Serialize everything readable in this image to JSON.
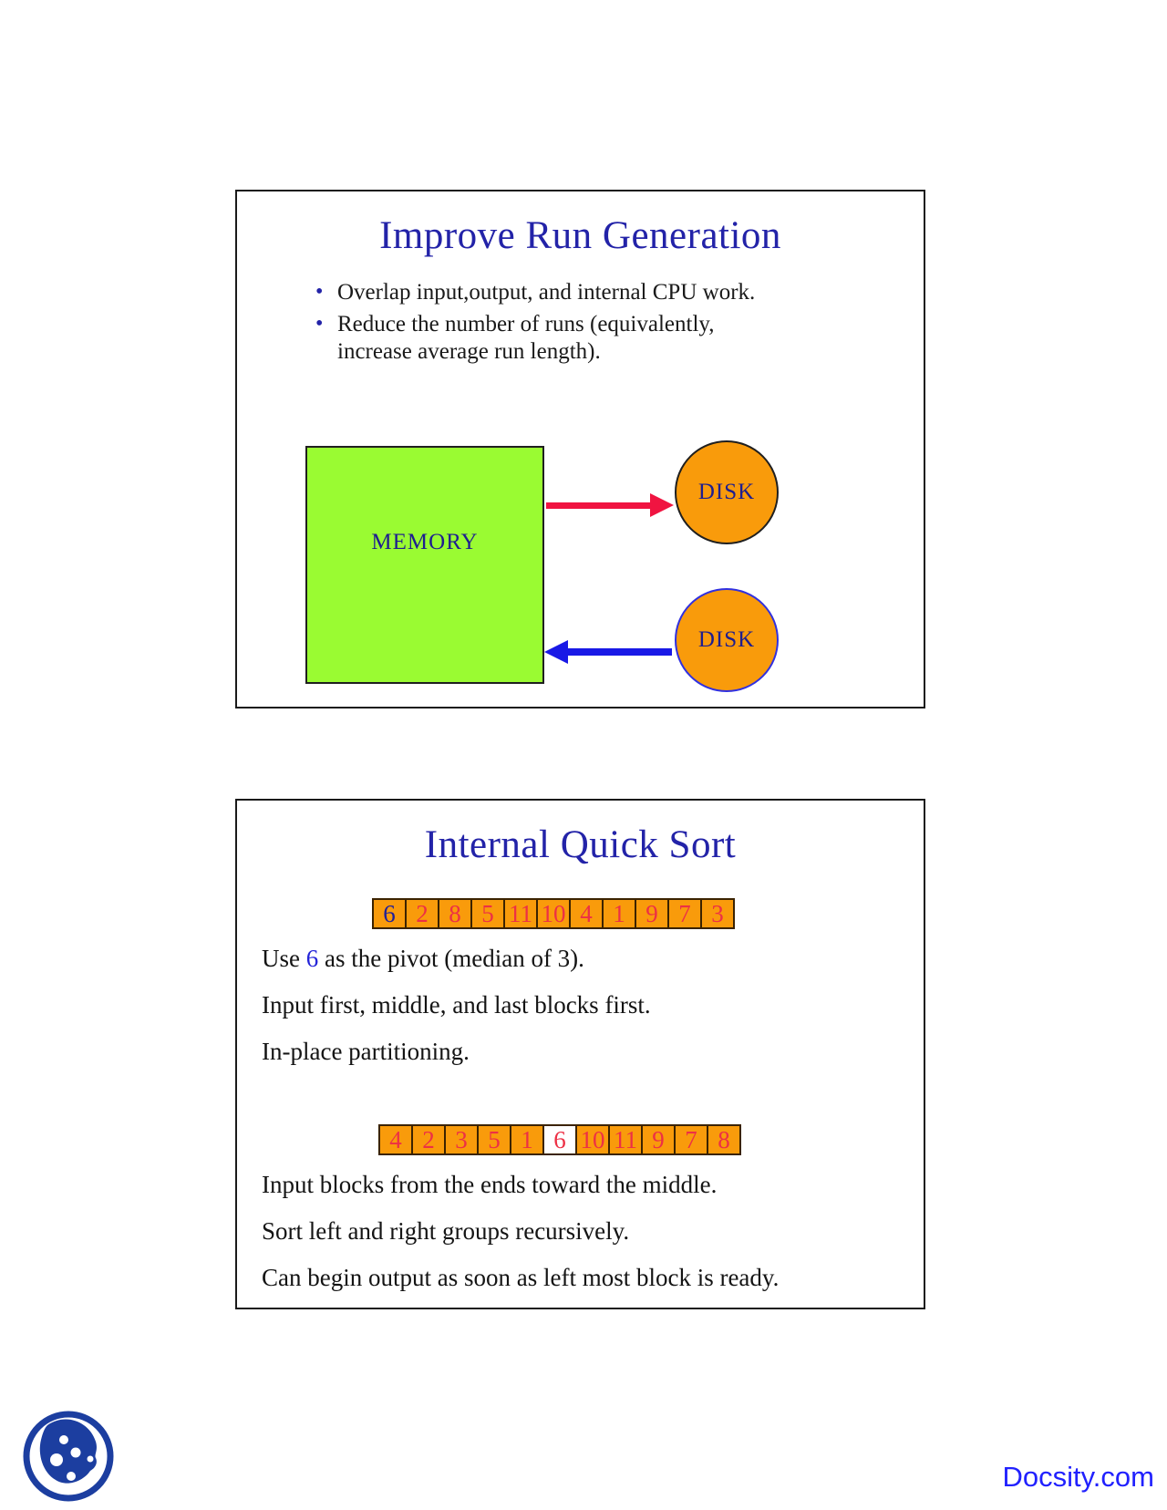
{
  "colors": {
    "title_blue": "#2323A8",
    "label_navy": "#1E1E8F",
    "memory_green": "#9AFB32",
    "disk_orange": "#F99B0B",
    "arrow_red": "#F01441",
    "arrow_blue": "#1919E6",
    "cell_orange": "#F99B0B",
    "number_red": "#ED3045",
    "number_blue": "#20209A",
    "docsity_blue": "#2121FE",
    "logo_blue": "#1C3EA0"
  },
  "slide1": {
    "title": "Improve Run Generation",
    "bullets": [
      "Overlap input,output, and internal CPU work.",
      "Reduce the number of runs (equivalently, increase average run length)."
    ],
    "memory_label": "MEMORY",
    "disk_top_label": "DISK",
    "disk_bottom_label": "DISK"
  },
  "slide2": {
    "title": "Internal Quick Sort",
    "arrays": [
      {
        "values": [
          "6",
          "2",
          "8",
          "5",
          "11",
          "10",
          "4",
          "1",
          "9",
          "7",
          "3"
        ],
        "blue_number_index": 0
      },
      {
        "values": [
          "4",
          "2",
          "3",
          "5",
          "1",
          "6",
          "10",
          "11",
          "9",
          "7",
          "8"
        ],
        "white_cell_index": 5
      }
    ],
    "pivot_line": {
      "prefix": "Use ",
      "highlight": "6",
      "suffix": " as the pivot (median of 3)."
    },
    "line_input_first": "Input first, middle, and last blocks first.",
    "line_inplace": "In-place partitioning.",
    "line_input_blocks": "Input blocks from the ends toward the middle.",
    "line_sort": "Sort left and right groups recursively.",
    "line_output": "Can begin output as soon as left most block is ready."
  },
  "footer": {
    "brand": "Docsity.com"
  }
}
